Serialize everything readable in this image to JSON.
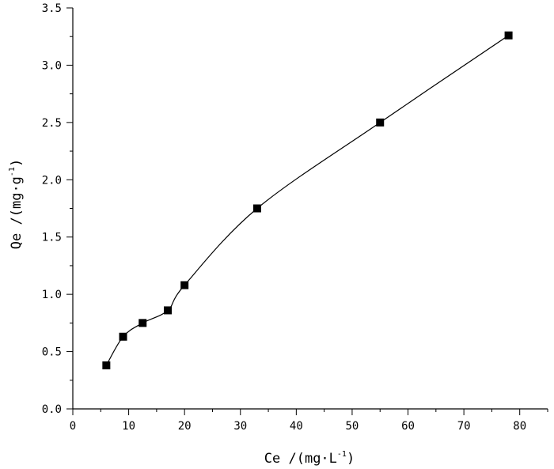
{
  "chart_data": {
    "type": "line",
    "title": "",
    "xlabel": {
      "base": "Ce /(mg·L",
      "sup": "-1",
      "close": ")"
    },
    "ylabel": {
      "base": "Qe /(mg·g",
      "sup": "-1",
      "close": ")"
    },
    "xlim": [
      0,
      85
    ],
    "ylim": [
      0,
      3.5
    ],
    "xticks": [
      0,
      10,
      20,
      30,
      40,
      50,
      60,
      70,
      80
    ],
    "yticks": [
      0.0,
      0.5,
      1.0,
      1.5,
      2.0,
      2.5,
      3.0,
      3.5
    ],
    "xtick_labels": [
      "0",
      "10",
      "20",
      "30",
      "40",
      "50",
      "60",
      "70",
      "80"
    ],
    "ytick_labels": [
      "0.0",
      "0.5",
      "1.0",
      "1.5",
      "2.0",
      "2.5",
      "3.0",
      "3.5"
    ],
    "grid": false,
    "series": [
      {
        "marker": "square",
        "line": "smooth",
        "color": "#000000",
        "x": [
          6,
          9,
          12.5,
          17,
          20,
          33,
          55,
          78
        ],
        "y": [
          0.38,
          0.63,
          0.75,
          0.86,
          1.08,
          1.75,
          2.5,
          3.26
        ]
      }
    ]
  }
}
